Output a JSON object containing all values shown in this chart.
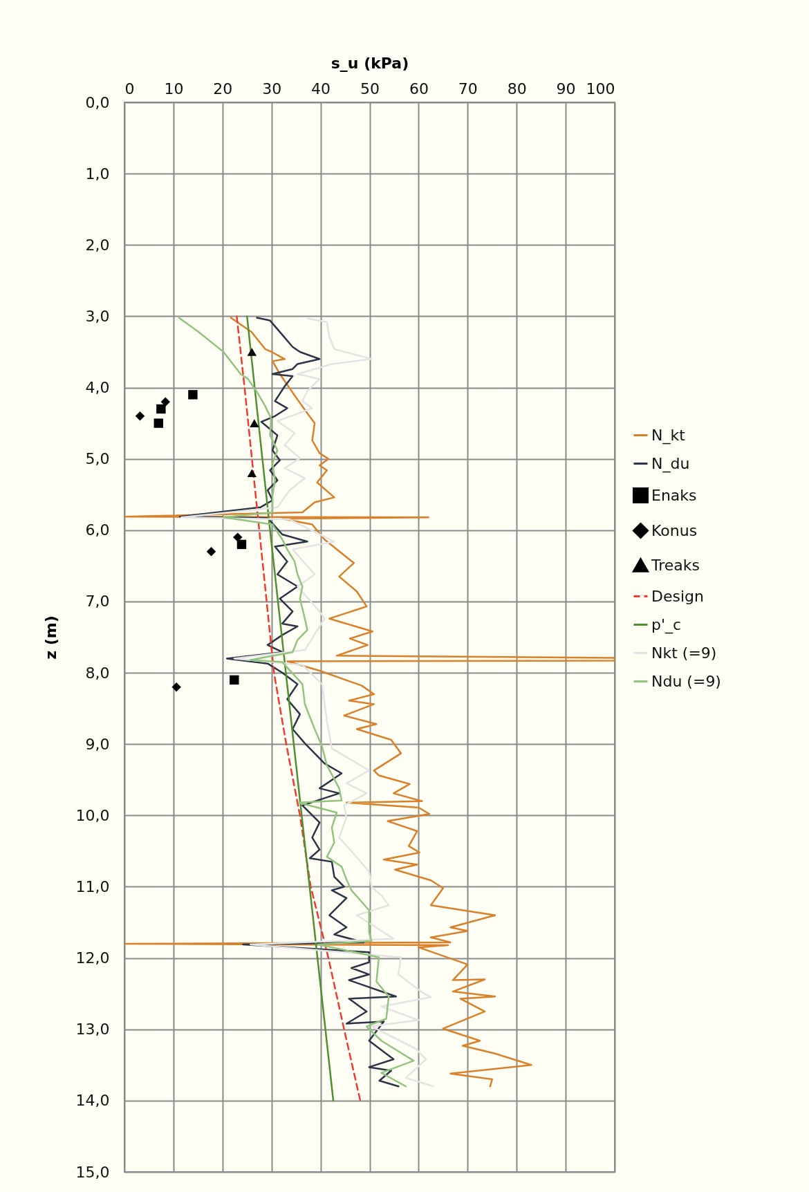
{
  "chart_data": {
    "type": "line",
    "xlabel": "s_u (kPa)",
    "ylabel": "z (m)",
    "xlim": [
      0,
      100
    ],
    "xticks": [
      0,
      10,
      20,
      30,
      40,
      50,
      60,
      70,
      80,
      90,
      100
    ],
    "ylim": [
      15,
      0
    ],
    "yticks": [
      {
        "value": 0,
        "label": "0,0"
      },
      {
        "value": 1,
        "label": "1,0"
      },
      {
        "value": 2,
        "label": "2,0"
      },
      {
        "value": 3,
        "label": "3,0"
      },
      {
        "value": 4,
        "label": "4,0"
      },
      {
        "value": 5,
        "label": "5,0"
      },
      {
        "value": 6,
        "label": "6,0"
      },
      {
        "value": 7,
        "label": "7,0"
      },
      {
        "value": 8,
        "label": "8,0"
      },
      {
        "value": 9,
        "label": "9,0"
      },
      {
        "value": 10,
        "label": "10,0"
      },
      {
        "value": 11,
        "label": "11,0"
      },
      {
        "value": 12,
        "label": "12,0"
      },
      {
        "value": 13,
        "label": "13,0"
      },
      {
        "value": 14,
        "label": "14,0"
      },
      {
        "value": 15,
        "label": "15,0"
      }
    ],
    "grid": true,
    "legend": "right",
    "series": [
      {
        "name": "N_kt",
        "type": "line",
        "color": "#d98028",
        "x": [
          21.7,
          25.9,
          28.7,
          30.0,
          32.7,
          30.2,
          31.7,
          34.8,
          37.3,
          38.8,
          38.3,
          39.8,
          41.6,
          39.8,
          41.3,
          39.3,
          42.8,
          38.8,
          36.3,
          0,
          62,
          32.2,
          38.3,
          40.8,
          46.8,
          43.8,
          47.4,
          49.4,
          41.8,
          50.6,
          46.0,
          49.6,
          43.3,
          100,
          100,
          33.2,
          39.8,
          48.4,
          50.9,
          45.8,
          50.9,
          44.8,
          51.4,
          47.4,
          54.4,
          56.4,
          50.9,
          51.9,
          58.2,
          54.9,
          60.7,
          45.3,
          60.0,
          62.2,
          53.7,
          59.7,
          58.0,
          60.2,
          52.9,
          59.7,
          55.2,
          60.0,
          62.5,
          65.0,
          62.5,
          75.6,
          66.5,
          70.0,
          62.5,
          66.5,
          0,
          66.0,
          60.0,
          70.0,
          67.0,
          73.5,
          67.0,
          75.6,
          68.5,
          73.5,
          65.0,
          72.5,
          69.0,
          75.6,
          83.0,
          66.5,
          75.0,
          74.6
        ],
        "values": [
          3.02,
          3.22,
          3.46,
          3.5,
          3.6,
          3.63,
          3.81,
          4.12,
          4.36,
          4.5,
          4.74,
          4.92,
          5.0,
          5.09,
          5.16,
          5.33,
          5.54,
          5.61,
          5.75,
          5.81,
          5.82,
          5.84,
          5.92,
          6.13,
          6.46,
          6.65,
          6.86,
          7.07,
          7.24,
          7.42,
          7.52,
          7.61,
          7.76,
          7.79,
          7.83,
          7.84,
          7.97,
          8.18,
          8.3,
          8.39,
          8.44,
          8.6,
          8.72,
          8.79,
          8.94,
          9.13,
          9.37,
          9.44,
          9.56,
          9.69,
          9.8,
          9.82,
          9.89,
          9.98,
          10.08,
          10.22,
          10.43,
          10.52,
          10.62,
          10.69,
          10.76,
          10.86,
          10.91,
          11.02,
          11.26,
          11.4,
          11.57,
          11.62,
          11.71,
          11.78,
          11.8,
          11.82,
          11.85,
          12.09,
          12.31,
          12.3,
          12.47,
          12.54,
          12.57,
          12.75,
          12.99,
          13.16,
          13.23,
          13.34,
          13.5,
          13.62,
          13.7,
          13.8
        ]
      },
      {
        "name": "N_du",
        "type": "line",
        "color": "#2b3445",
        "x": [
          27.0,
          29.7,
          31.7,
          34.3,
          35.8,
          39.8,
          35.3,
          34.3,
          30.2,
          34.3,
          32.7,
          30.7,
          33.2,
          30.7,
          27.9,
          31.2,
          30.2,
          31.7,
          29.7,
          31.2,
          29.2,
          30.2,
          27.7,
          11.3,
          29.2,
          32.2,
          37.3,
          30.7,
          33.2,
          31.2,
          35.3,
          31.7,
          34.3,
          32.2,
          35.3,
          32.2,
          29.2,
          32.2,
          20.9,
          29.2,
          32.2,
          35.3,
          33.2,
          35.8,
          34.3,
          36.8,
          38.8,
          40.8,
          44.3,
          39.8,
          43.8,
          36.3,
          39.8,
          38.3,
          39.8,
          37.8,
          42.3,
          42.8,
          44.8,
          42.3,
          45.3,
          41.8,
          45.3,
          42.8,
          48.8,
          24.2,
          49.9,
          49.9,
          46.3,
          49.9,
          45.8,
          55.4,
          45.8,
          49.4,
          45.3,
          52.9,
          49.9,
          54.9,
          49.9,
          54.4,
          52.0,
          55.9
        ],
        "values": [
          3.02,
          3.06,
          3.22,
          3.43,
          3.5,
          3.6,
          3.67,
          3.74,
          3.81,
          3.84,
          3.98,
          4.19,
          4.29,
          4.4,
          4.48,
          4.67,
          4.88,
          5.02,
          5.16,
          5.3,
          5.44,
          5.58,
          5.68,
          5.81,
          5.83,
          6.06,
          6.16,
          6.23,
          6.44,
          6.62,
          6.79,
          6.96,
          7.14,
          7.31,
          7.35,
          7.47,
          7.61,
          7.71,
          7.8,
          7.87,
          8.0,
          8.16,
          8.37,
          8.58,
          8.79,
          8.99,
          9.13,
          9.27,
          9.41,
          9.62,
          9.69,
          9.86,
          10.1,
          10.31,
          10.48,
          10.6,
          10.65,
          10.86,
          11.0,
          11.05,
          11.16,
          11.4,
          11.57,
          11.67,
          11.78,
          11.81,
          11.92,
          12.06,
          12.14,
          12.23,
          12.31,
          12.54,
          12.57,
          12.75,
          12.92,
          12.89,
          13.16,
          13.42,
          13.53,
          13.58,
          13.72,
          13.8
        ]
      },
      {
        "name": "Enaks",
        "type": "scatter",
        "marker": "square",
        "color": "#000000",
        "x": [
          13.95,
          7.46,
          6.95,
          23.9,
          22.4
        ],
        "values": [
          4.1,
          4.3,
          4.5,
          6.2,
          8.1
        ]
      },
      {
        "name": "Konus",
        "type": "scatter",
        "marker": "diamond",
        "color": "#000000",
        "x": [
          8.36,
          3.17,
          23.1,
          17.7,
          10.6
        ],
        "values": [
          4.2,
          4.4,
          6.1,
          6.3,
          8.2
        ]
      },
      {
        "name": "Treaks",
        "type": "scatter",
        "marker": "triangle",
        "color": "#000000",
        "x": [
          26.0,
          26.5,
          26.0
        ],
        "values": [
          3.5,
          4.5,
          5.2
        ]
      },
      {
        "name": "Design",
        "type": "line",
        "line_style": "dashed",
        "color": "#f03a2e",
        "x": [
          22.9,
          24.5,
          26.0,
          27.5,
          29.0,
          30.5,
          33.0,
          35.8,
          38.0,
          41.6,
          44.8,
          48.1
        ],
        "values": [
          3,
          4,
          5,
          6,
          7,
          8,
          9,
          10,
          11,
          12,
          13,
          14
        ]
      },
      {
        "name": "p'_c",
        "type": "line",
        "color": "#4f8f2f",
        "x": [
          25.0,
          29.7,
          42.6
        ],
        "values": [
          3,
          6,
          14
        ]
      },
      {
        "name": "Nkt (=9)",
        "type": "line",
        "color": "#e3e3e3",
        "x": [
          37.3,
          41.3,
          41.8,
          42.8,
          50.4,
          42.3,
          35.3,
          39.8,
          37.3,
          36.3,
          38.3,
          31.2,
          34.7,
          32.7,
          35.8,
          32.7,
          36.8,
          33.7,
          31.2,
          11.6,
          33.7,
          42.8,
          34.3,
          38.8,
          35.3,
          39.8,
          40.8,
          39.8,
          36.8,
          22.4,
          36.3,
          40.3,
          41.3,
          42.3,
          49.9,
          45.3,
          49.4,
          44.8,
          45.3,
          43.8,
          47.8,
          49.9,
          50.4,
          52.4,
          53.9,
          47.4,
          54.9,
          25.7,
          56.4,
          55.9,
          60.5,
          62.5,
          52.4,
          60.0,
          50.4,
          59.4,
          61.5,
          57.4,
          63.0
        ],
        "values": [
          3.03,
          3.08,
          3.29,
          3.46,
          3.6,
          3.67,
          3.81,
          3.88,
          4.05,
          4.19,
          4.29,
          4.47,
          4.64,
          4.81,
          4.99,
          5.13,
          5.27,
          5.44,
          5.68,
          5.82,
          5.85,
          6.16,
          6.27,
          6.62,
          6.79,
          7.14,
          7.24,
          7.35,
          7.68,
          7.8,
          7.89,
          8.16,
          8.68,
          9.06,
          9.37,
          9.55,
          9.69,
          9.86,
          10.03,
          10.31,
          10.62,
          10.79,
          11.0,
          11.12,
          11.26,
          11.4,
          11.73,
          11.81,
          11.99,
          12.23,
          12.47,
          12.55,
          12.68,
          12.87,
          12.96,
          13.27,
          13.42,
          13.68,
          13.8
        ]
      },
      {
        "name": "Ndu (=9)",
        "type": "line",
        "color": "#93c47d",
        "x": [
          11.1,
          15.1,
          20.2,
          23.7,
          25.2,
          27.2,
          28.7,
          29.9,
          29.7,
          31.2,
          30.2,
          30.7,
          30.2,
          30.2,
          20.2,
          30.2,
          32.2,
          33.2,
          34.7,
          35.3,
          36.3,
          35.8,
          36.8,
          37.3,
          35.3,
          34.3,
          25.7,
          32.2,
          36.3,
          36.8,
          38.8,
          40.3,
          41.3,
          43.8,
          44.3,
          35.5,
          43.3,
          42.3,
          42.8,
          41.3,
          44.3,
          45.3,
          46.3,
          49.9,
          49.9,
          50.4,
          39.5,
          51.9,
          51.4,
          53.9,
          53.4,
          49.4,
          52.4,
          59.0,
          52.4,
          57.4
        ],
        "values": [
          3.02,
          3.22,
          3.5,
          3.81,
          3.88,
          4.08,
          4.26,
          4.43,
          4.67,
          4.88,
          5.06,
          5.3,
          5.51,
          5.75,
          5.82,
          5.92,
          6.13,
          6.27,
          6.44,
          6.62,
          6.79,
          6.96,
          7.24,
          7.4,
          7.54,
          7.71,
          7.82,
          7.85,
          8.16,
          8.44,
          8.79,
          9.03,
          9.3,
          9.62,
          9.79,
          9.82,
          9.96,
          10.17,
          10.38,
          10.58,
          10.72,
          10.9,
          11.05,
          11.33,
          11.64,
          11.76,
          11.81,
          11.99,
          12.33,
          12.54,
          12.85,
          12.96,
          13.16,
          13.44,
          13.61,
          13.8
        ]
      }
    ]
  }
}
